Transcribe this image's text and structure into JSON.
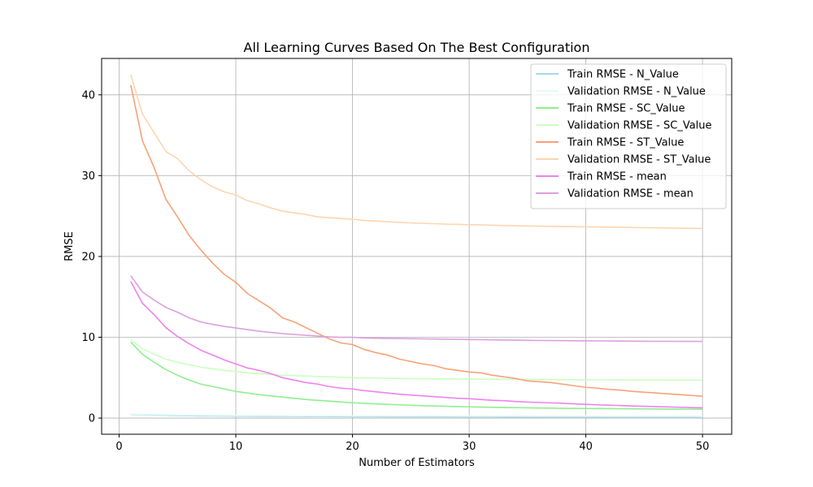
{
  "chart_data": {
    "type": "line",
    "title": "All Learning Curves Based On The Best Configuration",
    "xlabel": "Number of Estimators",
    "ylabel": "RMSE",
    "xlim": [
      -1.5,
      52.5
    ],
    "ylim": [
      -2,
      44.5
    ],
    "xticks": [
      0,
      10,
      20,
      30,
      40,
      50
    ],
    "yticks": [
      0,
      10,
      20,
      30,
      40
    ],
    "grid": true,
    "legend_position": "top-right",
    "x": [
      1,
      2,
      3,
      4,
      5,
      6,
      7,
      8,
      9,
      10,
      11,
      12,
      13,
      14,
      15,
      16,
      17,
      18,
      19,
      20,
      21,
      22,
      23,
      24,
      25,
      26,
      27,
      28,
      29,
      30,
      31,
      32,
      33,
      34,
      35,
      36,
      37,
      38,
      39,
      40,
      41,
      42,
      43,
      44,
      45,
      46,
      47,
      48,
      49,
      50
    ],
    "series": [
      {
        "name": "Train RMSE - N_Value",
        "color": "#a6d8ee",
        "values": [
          0.45,
          0.42,
          0.38,
          0.34,
          0.31,
          0.29,
          0.27,
          0.26,
          0.25,
          0.24,
          0.23,
          0.22,
          0.22,
          0.21,
          0.21,
          0.2,
          0.2,
          0.19,
          0.19,
          0.18,
          0.18,
          0.18,
          0.17,
          0.17,
          0.17,
          0.16,
          0.16,
          0.16,
          0.15,
          0.15,
          0.15,
          0.15,
          0.14,
          0.14,
          0.14,
          0.14,
          0.13,
          0.13,
          0.13,
          0.13,
          0.12,
          0.12,
          0.12,
          0.12,
          0.12,
          0.11,
          0.11,
          0.11,
          0.11,
          0.1
        ]
      },
      {
        "name": "Validation RMSE - N_Value",
        "color": "#e3fbf4",
        "values": [
          0.5,
          0.47,
          0.44,
          0.41,
          0.39,
          0.37,
          0.35,
          0.34,
          0.33,
          0.32,
          0.31,
          0.31,
          0.3,
          0.3,
          0.29,
          0.29,
          0.28,
          0.28,
          0.28,
          0.27,
          0.27,
          0.27,
          0.27,
          0.26,
          0.26,
          0.26,
          0.26,
          0.26,
          0.25,
          0.25,
          0.25,
          0.25,
          0.25,
          0.25,
          0.24,
          0.24,
          0.24,
          0.24,
          0.24,
          0.24,
          0.24,
          0.23,
          0.23,
          0.23,
          0.23,
          0.23,
          0.23,
          0.23,
          0.23,
          0.22
        ]
      },
      {
        "name": "Train RMSE - SC_Value",
        "color": "#90ee90",
        "values": [
          9.4,
          7.9,
          6.9,
          6.0,
          5.3,
          4.7,
          4.2,
          3.9,
          3.6,
          3.3,
          3.1,
          2.9,
          2.75,
          2.6,
          2.45,
          2.3,
          2.2,
          2.1,
          2.0,
          1.9,
          1.82,
          1.76,
          1.7,
          1.64,
          1.58,
          1.54,
          1.5,
          1.46,
          1.42,
          1.39,
          1.36,
          1.33,
          1.31,
          1.29,
          1.27,
          1.25,
          1.23,
          1.21,
          1.2,
          1.19,
          1.18,
          1.17,
          1.16,
          1.15,
          1.14,
          1.13,
          1.12,
          1.11,
          1.1,
          1.09
        ]
      },
      {
        "name": "Validation RMSE - SC_Value",
        "color": "#ccffc0",
        "values": [
          9.7,
          8.6,
          7.9,
          7.3,
          6.9,
          6.6,
          6.3,
          6.1,
          5.9,
          5.75,
          5.6,
          5.5,
          5.4,
          5.3,
          5.25,
          5.2,
          5.15,
          5.1,
          5.05,
          5.0,
          4.98,
          4.95,
          4.92,
          4.9,
          4.88,
          4.86,
          4.85,
          4.84,
          4.83,
          4.82,
          4.81,
          4.8,
          4.79,
          4.78,
          4.77,
          4.76,
          4.76,
          4.75,
          4.75,
          4.74,
          4.73,
          4.73,
          4.72,
          4.72,
          4.71,
          4.71,
          4.7,
          4.7,
          4.7,
          4.69
        ]
      },
      {
        "name": "Train RMSE - ST_Value",
        "color": "#f7a278",
        "values": [
          41.2,
          34.3,
          31.0,
          27.1,
          24.9,
          22.6,
          20.8,
          19.2,
          17.8,
          16.8,
          15.4,
          14.5,
          13.6,
          12.4,
          11.9,
          11.2,
          10.5,
          9.8,
          9.3,
          9.1,
          8.5,
          8.1,
          7.8,
          7.3,
          7.0,
          6.7,
          6.5,
          6.1,
          5.9,
          5.7,
          5.6,
          5.3,
          5.1,
          4.9,
          4.6,
          4.5,
          4.4,
          4.2,
          4.0,
          3.8,
          3.7,
          3.55,
          3.45,
          3.3,
          3.2,
          3.1,
          3.0,
          2.9,
          2.8,
          2.7
        ]
      },
      {
        "name": "Validation RMSE - ST_Value",
        "color": "#fdd5b1",
        "values": [
          42.5,
          37.6,
          35.3,
          33.0,
          32.1,
          30.6,
          29.5,
          28.6,
          28.0,
          27.6,
          26.9,
          26.5,
          26.0,
          25.6,
          25.4,
          25.2,
          24.9,
          24.8,
          24.7,
          24.6,
          24.45,
          24.38,
          24.3,
          24.22,
          24.15,
          24.1,
          24.05,
          24.0,
          23.97,
          23.93,
          23.9,
          23.86,
          23.83,
          23.8,
          23.77,
          23.75,
          23.72,
          23.7,
          23.68,
          23.66,
          23.64,
          23.62,
          23.6,
          23.58,
          23.56,
          23.54,
          23.52,
          23.5,
          23.48,
          23.46
        ]
      },
      {
        "name": "Train RMSE - mean",
        "color": "#ee82ee",
        "values": [
          16.9,
          14.2,
          12.8,
          11.2,
          10.1,
          9.2,
          8.4,
          7.8,
          7.2,
          6.7,
          6.2,
          5.9,
          5.5,
          5.0,
          4.7,
          4.4,
          4.2,
          3.9,
          3.7,
          3.6,
          3.4,
          3.25,
          3.1,
          2.95,
          2.85,
          2.75,
          2.65,
          2.55,
          2.45,
          2.4,
          2.3,
          2.2,
          2.15,
          2.05,
          1.98,
          1.93,
          1.88,
          1.83,
          1.76,
          1.7,
          1.64,
          1.6,
          1.55,
          1.5,
          1.46,
          1.42,
          1.38,
          1.34,
          1.3,
          1.27
        ]
      },
      {
        "name": "Validation RMSE - mean",
        "color": "#dda0dd",
        "values": [
          17.6,
          15.6,
          14.6,
          13.7,
          13.1,
          12.4,
          11.9,
          11.6,
          11.35,
          11.15,
          10.95,
          10.75,
          10.6,
          10.45,
          10.35,
          10.25,
          10.15,
          10.05,
          10.0,
          10.0,
          9.92,
          9.88,
          9.86,
          9.84,
          9.82,
          9.8,
          9.78,
          9.76,
          9.74,
          9.72,
          9.7,
          9.68,
          9.66,
          9.64,
          9.62,
          9.6,
          9.59,
          9.58,
          9.57,
          9.56,
          9.55,
          9.54,
          9.53,
          9.52,
          9.51,
          9.5,
          9.5,
          9.49,
          9.49,
          9.48
        ]
      }
    ]
  }
}
